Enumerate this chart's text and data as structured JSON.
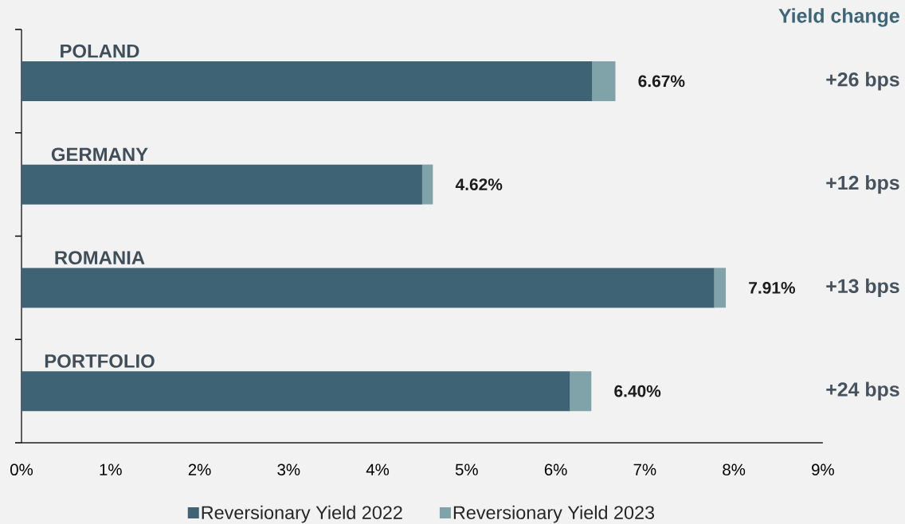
{
  "chart_data": {
    "type": "bar",
    "orientation": "horizontal",
    "stacked": true,
    "categories": [
      "POLAND",
      "GERMANY",
      "ROMANIA",
      "PORTFOLIO"
    ],
    "series": [
      {
        "name": "Reversionary Yield 2022",
        "color": "#3d6374",
        "values": [
          6.41,
          4.5,
          7.78,
          6.16
        ]
      },
      {
        "name": "Reversionary Yield 2023",
        "color": "#7fa3a8",
        "values": [
          0.26,
          0.12,
          0.13,
          0.24
        ]
      }
    ],
    "totals": [
      "6.67%",
      "4.62%",
      "7.91%",
      "6.40%"
    ],
    "xlim": [
      0,
      9
    ],
    "xticks": [
      {
        "value": 0,
        "label": "0%"
      },
      {
        "value": 1,
        "label": "1%"
      },
      {
        "value": 2,
        "label": "2%"
      },
      {
        "value": 3,
        "label": "3%"
      },
      {
        "value": 4,
        "label": "4%"
      },
      {
        "value": 5,
        "label": "5%"
      },
      {
        "value": 6,
        "label": "6%"
      },
      {
        "value": 7,
        "label": "7%"
      },
      {
        "value": 8,
        "label": "8%"
      },
      {
        "value": 9,
        "label": "9%"
      }
    ],
    "annotations": [
      "Yield change",
      "+26 bps",
      "+12 bps",
      "+13 bps",
      "+24 bps"
    ],
    "legend": "bottom"
  }
}
